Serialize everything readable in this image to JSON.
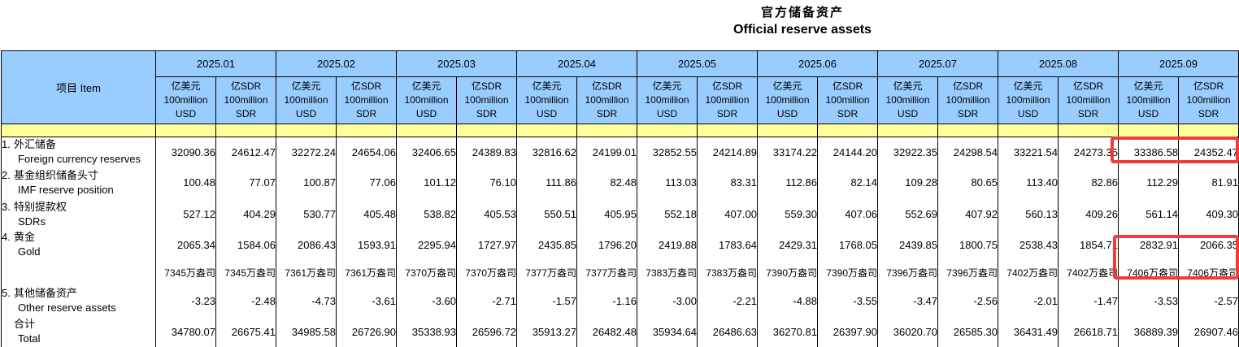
{
  "title": {
    "zh": "官方储备资产",
    "en": "Official reserve assets"
  },
  "colors": {
    "header_blue": "#99CCFF",
    "band_yellow": "#FFFF99",
    "highlight_red": "#F43B3B"
  },
  "table": {
    "item_header": "项目  Item",
    "unit_usd": [
      "亿美元",
      "100million",
      "USD"
    ],
    "unit_sdr": [
      "亿SDR",
      "100million",
      "SDR"
    ],
    "rows": [
      {
        "num": "1.",
        "zh": "外汇储备",
        "en": "Foreign currency reserves"
      },
      {
        "num": "2.",
        "zh": "基金组织储备头寸",
        "en": "IMF reserve position"
      },
      {
        "num": "3.",
        "zh": "特别提款权",
        "en": "SDRs"
      },
      {
        "num": "4.",
        "zh": "黄金",
        "en": "Gold"
      },
      {
        "num": "",
        "zh": "",
        "en": ""
      },
      {
        "num": "5.",
        "zh": "其他储备资产",
        "en": "Other reserve assets"
      },
      {
        "num": "",
        "zh": "合计",
        "en": "Total"
      }
    ],
    "months": [
      {
        "label": "2025.01",
        "values": [
          [
            "32090.36",
            "24612.47"
          ],
          [
            "100.48",
            "77.07"
          ],
          [
            "527.12",
            "404.29"
          ],
          [
            "2065.34",
            "1584.06"
          ],
          [
            "7345万盎司",
            "7345万盎司"
          ],
          [
            "-3.23",
            "-2.48"
          ],
          [
            "34780.07",
            "26675.41"
          ]
        ]
      },
      {
        "label": "2025.02",
        "values": [
          [
            "32272.24",
            "24654.06"
          ],
          [
            "100.87",
            "77.06"
          ],
          [
            "530.77",
            "405.48"
          ],
          [
            "2086.43",
            "1593.91"
          ],
          [
            "7361万盎司",
            "7361万盎司"
          ],
          [
            "-4.73",
            "-3.61"
          ],
          [
            "34985.58",
            "26726.90"
          ]
        ]
      },
      {
        "label": "2025.03",
        "values": [
          [
            "32406.65",
            "24389.83"
          ],
          [
            "101.12",
            "76.10"
          ],
          [
            "538.82",
            "405.53"
          ],
          [
            "2295.94",
            "1727.97"
          ],
          [
            "7370万盎司",
            "7370万盎司"
          ],
          [
            "-3.60",
            "-2.71"
          ],
          [
            "35338.93",
            "26596.72"
          ]
        ]
      },
      {
        "label": "2025.04",
        "values": [
          [
            "32816.62",
            "24199.01"
          ],
          [
            "111.86",
            "82.48"
          ],
          [
            "550.51",
            "405.95"
          ],
          [
            "2435.85",
            "1796.20"
          ],
          [
            "7377万盎司",
            "7377万盎司"
          ],
          [
            "-1.57",
            "-1.16"
          ],
          [
            "35913.27",
            "26482.48"
          ]
        ]
      },
      {
        "label": "2025.05",
        "values": [
          [
            "32852.55",
            "24214.89"
          ],
          [
            "113.03",
            "83.31"
          ],
          [
            "552.18",
            "407.00"
          ],
          [
            "2419.88",
            "1783.64"
          ],
          [
            "7383万盎司",
            "7383万盎司"
          ],
          [
            "-3.00",
            "-2.21"
          ],
          [
            "35934.64",
            "26486.63"
          ]
        ]
      },
      {
        "label": "2025.06",
        "values": [
          [
            "33174.22",
            "24144.20"
          ],
          [
            "112.86",
            "82.14"
          ],
          [
            "559.30",
            "407.06"
          ],
          [
            "2429.31",
            "1768.05"
          ],
          [
            "7390万盎司",
            "7390万盎司"
          ],
          [
            "-4.88",
            "-3.55"
          ],
          [
            "36270.81",
            "26397.90"
          ]
        ]
      },
      {
        "label": "2025.07",
        "values": [
          [
            "32922.35",
            "24298.54"
          ],
          [
            "109.28",
            "80.65"
          ],
          [
            "552.69",
            "407.92"
          ],
          [
            "2439.85",
            "1800.75"
          ],
          [
            "7396万盎司",
            "7396万盎司"
          ],
          [
            "-3.47",
            "-2.56"
          ],
          [
            "36020.70",
            "26585.30"
          ]
        ]
      },
      {
        "label": "2025.08",
        "values": [
          [
            "33221.54",
            "24273.35"
          ],
          [
            "113.40",
            "82.86"
          ],
          [
            "560.13",
            "409.26"
          ],
          [
            "2538.43",
            "1854.71"
          ],
          [
            "7402万盎司",
            "7402万盎司"
          ],
          [
            "-2.01",
            "-1.47"
          ],
          [
            "36431.49",
            "26618.71"
          ]
        ]
      },
      {
        "label": "2025.09",
        "values": [
          [
            "33386.58",
            "24352.47"
          ],
          [
            "112.29",
            "81.91"
          ],
          [
            "561.14",
            "409.30"
          ],
          [
            "2832.91",
            "2066.35"
          ],
          [
            "7406万盎司",
            "7406万盎司"
          ],
          [
            "-3.53",
            "-2.57"
          ],
          [
            "36889.39",
            "26907.46"
          ]
        ]
      }
    ]
  },
  "highlights": [
    {
      "name": "september-foreign-currency-reserves",
      "cells": [
        "33386.58",
        "24352.47"
      ]
    },
    {
      "name": "september-gold",
      "cells": [
        "2832.91",
        "2066.35",
        "7406万盎司",
        "7406万盎司"
      ]
    }
  ]
}
